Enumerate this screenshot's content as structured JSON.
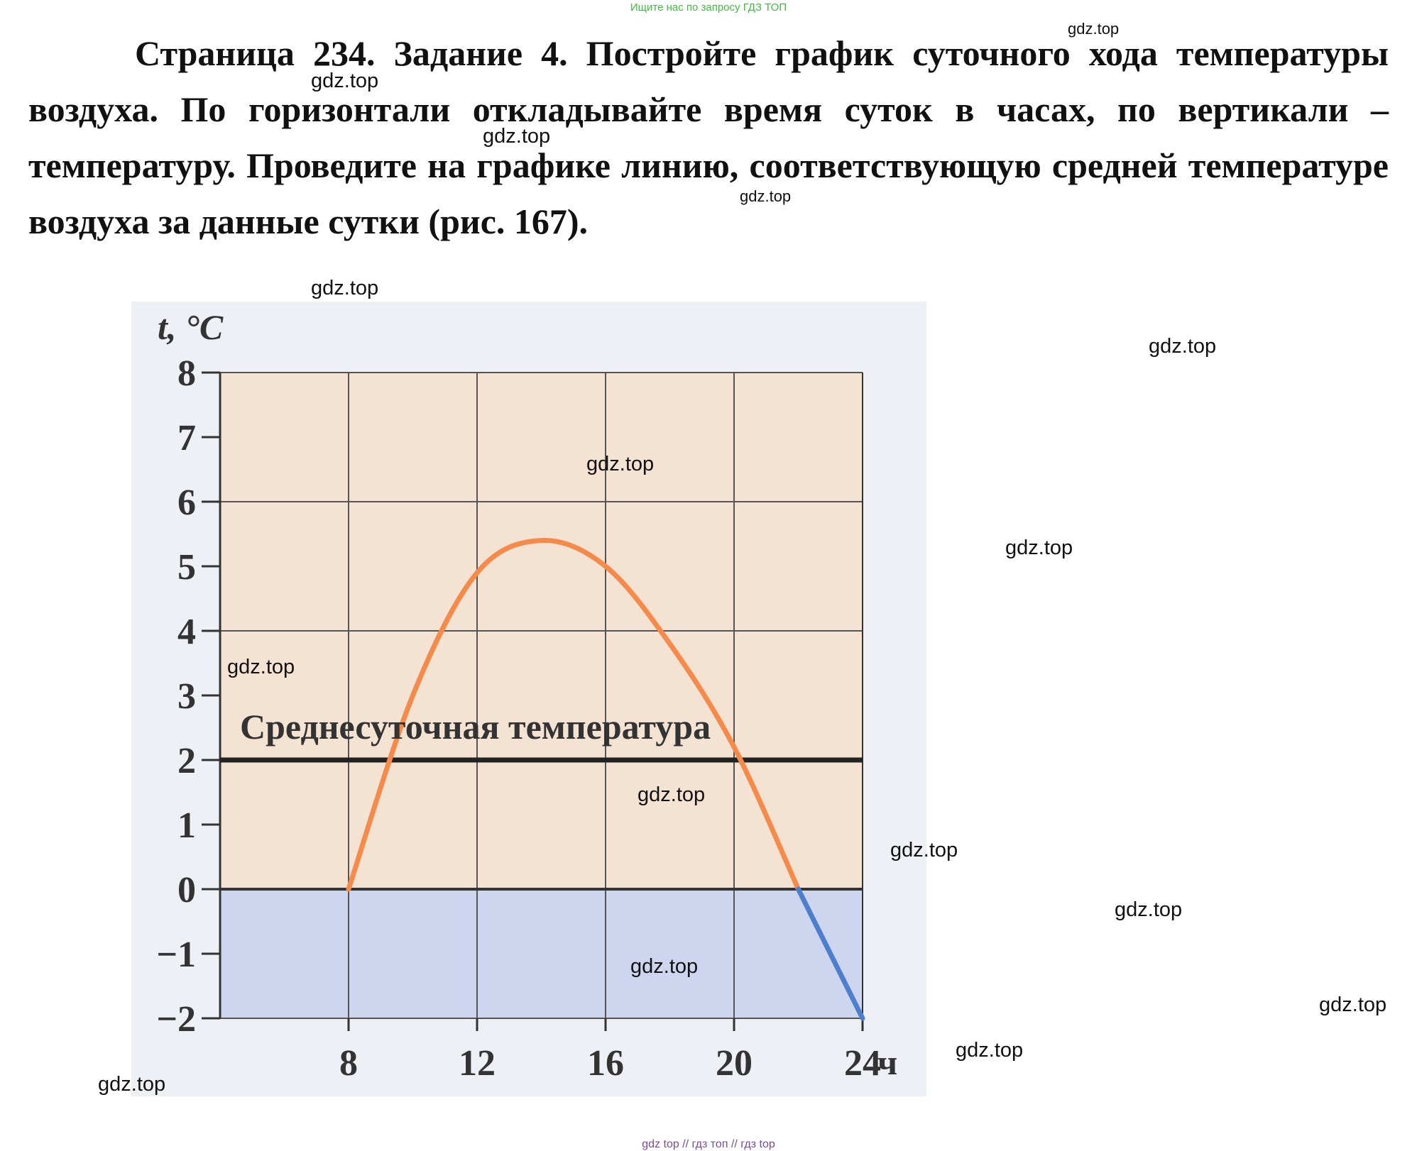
{
  "header": {
    "banner": "Ищите нас по запросу ГДЗ ТОП"
  },
  "task": {
    "text": "Страница 234. Задание 4.  Постройте график суточного хода температуры воздуха. По горизонтали откладывайте время суток в часах, по вертикали – температуру. Проведите на графике линию, соответствующую средней температуре воздуха за данные сутки (рис. 167)."
  },
  "watermarks": [
    "gdz.top",
    "gdz.top",
    "gdz.top",
    "gdz.top",
    "gdz.top",
    "gdz.top",
    "gdz.top",
    "gdz.top",
    "gdz.top",
    "gdz.top",
    "gdz.top",
    "gdz.top",
    "gdz.top",
    "gdz.top",
    "gdz.top",
    "gdz.top"
  ],
  "footer": {
    "banner": "gdz top  //  гдз топ  //  гдз top"
  },
  "chart_data": {
    "type": "line",
    "ylabel": "t, °С",
    "x_unit": "ч",
    "x_ticks": [
      8,
      12,
      16,
      20,
      24
    ],
    "y_ticks": [
      8,
      7,
      6,
      5,
      4,
      3,
      2,
      1,
      0,
      -1,
      -2
    ],
    "xlim": [
      4,
      24
    ],
    "ylim": [
      -2,
      8
    ],
    "grid": true,
    "colors": {
      "positive": "#f58a4a",
      "negative": "#4d7fcc",
      "warm_fill": "#f4e3d3",
      "cold_fill": "#cdd6ee",
      "average_line": "#222222"
    },
    "series": [
      {
        "x": [
          8,
          10,
          12,
          14,
          16,
          18,
          20,
          22
        ],
        "y": [
          0,
          3,
          4.9,
          5.4,
          5,
          3.8,
          2.2,
          0
        ]
      },
      {
        "x": [
          22,
          24
        ],
        "y": [
          0,
          -2
        ]
      }
    ],
    "average_line": {
      "y": 2,
      "label": "Среднесуточная температура"
    }
  }
}
